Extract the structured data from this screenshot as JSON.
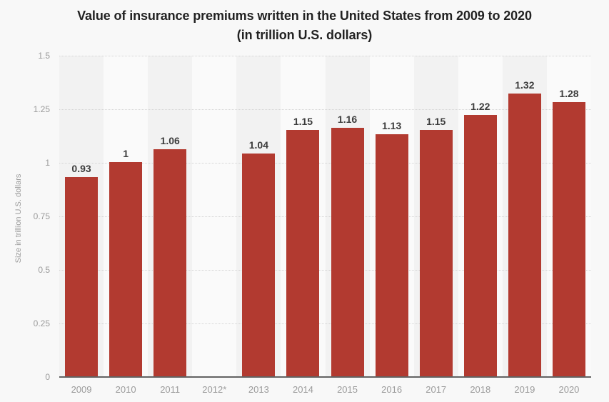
{
  "page": {
    "background": "#f8f8f8"
  },
  "chart_data": {
    "type": "bar",
    "title": "Value of insurance premiums written in the United States from 2009 to 2020",
    "subtitle": "(in trillion U.S. dollars)",
    "xlabel": "",
    "ylabel": "Size in trillion U.S. dollars",
    "categories": [
      "2009",
      "2010",
      "2011",
      "2012*",
      "2013",
      "2014",
      "2015",
      "2016",
      "2017",
      "2018",
      "2019",
      "2020"
    ],
    "values": [
      0.93,
      1,
      1.06,
      null,
      1.04,
      1.15,
      1.16,
      1.13,
      1.15,
      1.22,
      1.32,
      1.28
    ],
    "value_labels": [
      "0.93",
      "1",
      "1.06",
      "",
      "1.04",
      "1.15",
      "1.16",
      "1.13",
      "1.15",
      "1.22",
      "1.32",
      "1.28"
    ],
    "ylim": [
      0,
      1.5
    ],
    "yticks": [
      0,
      0.25,
      0.5,
      0.75,
      1,
      1.25,
      1.5
    ],
    "ytick_labels": [
      "0",
      "0.25",
      "0.5",
      "0.75",
      "1",
      "1.25",
      "1.5"
    ],
    "grid": "horizontal-dotted",
    "legend": "none",
    "background_bands": "alternating vertical column bands"
  },
  "colors": {
    "bar": "#b23a30",
    "page_bg": "#f8f8f8",
    "band_dark": "#f2f2f2",
    "band_light": "#fafafa",
    "title_text": "#222222",
    "value_label_text": "#3d3d3d",
    "axis_tick_text": "#9b9b9b",
    "gridline": "#d4d4d4",
    "axis_line": "#636363"
  }
}
